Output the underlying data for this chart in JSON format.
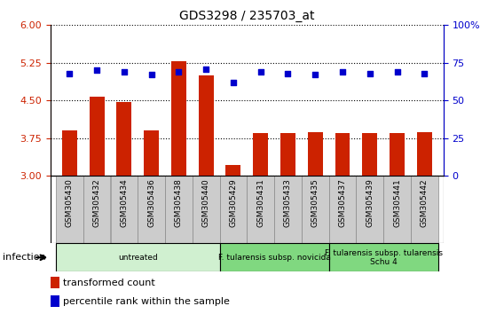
{
  "title": "GDS3298 / 235703_at",
  "samples": [
    "GSM305430",
    "GSM305432",
    "GSM305434",
    "GSM305436",
    "GSM305438",
    "GSM305440",
    "GSM305429",
    "GSM305431",
    "GSM305433",
    "GSM305435",
    "GSM305437",
    "GSM305439",
    "GSM305441",
    "GSM305442"
  ],
  "transformed_count": [
    3.9,
    4.57,
    4.47,
    3.9,
    5.28,
    5.0,
    3.22,
    3.85,
    3.85,
    3.87,
    3.85,
    3.85,
    3.85,
    3.87
  ],
  "percentile_rank": [
    68,
    70,
    69,
    67,
    69,
    71,
    62,
    69,
    68,
    67,
    69,
    68,
    69,
    68
  ],
  "bar_color": "#cc2200",
  "dot_color": "#0000cc",
  "ylim_left": [
    3,
    6
  ],
  "ylim_right": [
    0,
    100
  ],
  "yticks_left": [
    3,
    3.75,
    4.5,
    5.25,
    6
  ],
  "yticks_right": [
    0,
    25,
    50,
    75,
    100
  ],
  "groups": [
    {
      "label": "untreated",
      "start": 0,
      "end": 5,
      "color": "#d0f0d0"
    },
    {
      "label": "F. tularensis subsp. novicida",
      "start": 6,
      "end": 9,
      "color": "#80d880"
    },
    {
      "label": "F. tularensis subsp. tularensis\nSchu 4",
      "start": 10,
      "end": 13,
      "color": "#80d880"
    }
  ],
  "xlabel_infection": "infection",
  "legend_bar_label": "transformed count",
  "legend_dot_label": "percentile rank within the sample",
  "plot_bg": "#ffffff",
  "tick_area_bg": "#cccccc",
  "right_ytick_labels": [
    "0",
    "25",
    "50",
    "75",
    "100%"
  ]
}
